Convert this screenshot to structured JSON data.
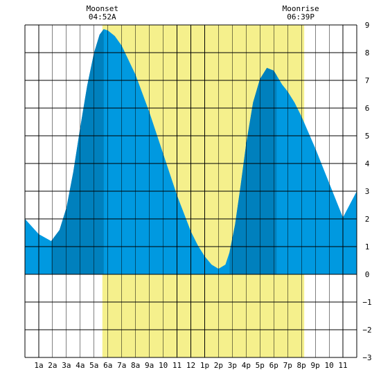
{
  "chart_data": {
    "type": "area",
    "title": "",
    "xlabel": "",
    "ylabel": "",
    "xlim": [
      0,
      24
    ],
    "ylim": [
      -3,
      9
    ],
    "y_ticks": [
      -3,
      -2,
      -1,
      0,
      1,
      2,
      3,
      4,
      5,
      6,
      7,
      8,
      9
    ],
    "x_tick_labels": [
      "1a",
      "2a",
      "3a",
      "4a",
      "5a",
      "6a",
      "7a",
      "8a",
      "9a",
      "10",
      "11",
      "12",
      "1p",
      "2p",
      "3p",
      "4p",
      "5p",
      "6p",
      "7p",
      "8p",
      "9p",
      "10",
      "11"
    ],
    "grid": true,
    "tide": {
      "x": [
        0,
        1,
        1.9,
        2.5,
        3,
        3.5,
        4,
        4.5,
        5,
        5.4,
        5.7,
        6,
        6.5,
        7,
        8,
        9,
        10,
        11,
        12,
        12.5,
        13,
        13.5,
        14,
        14.5,
        14.8,
        15.2,
        15.6,
        16,
        16.5,
        17,
        17.5,
        18,
        18.3,
        18.6,
        19,
        19.5,
        20,
        21,
        22,
        23,
        24
      ],
      "y": [
        2.0,
        1.45,
        1.2,
        1.6,
        2.4,
        3.7,
        5.3,
        6.8,
        8.0,
        8.65,
        8.85,
        8.8,
        8.6,
        8.25,
        7.2,
        5.85,
        4.35,
        2.85,
        1.55,
        1.05,
        0.65,
        0.35,
        0.2,
        0.35,
        0.8,
        1.8,
        3.2,
        4.7,
        6.2,
        7.05,
        7.45,
        7.35,
        7.1,
        6.85,
        6.6,
        6.2,
        5.7,
        4.55,
        3.3,
        2.05,
        3.0
      ]
    },
    "night_shade": [
      [
        1.9,
        5.7
      ],
      [
        14.8,
        18.2
      ]
    ],
    "moon_up_band": [
      5.6,
      20.2
    ],
    "moon_events": [
      {
        "label": "Moonset",
        "time": "04:52A",
        "x": 5.6
      },
      {
        "label": "Moonrise",
        "time": "06:39P",
        "x": 19.95
      }
    ],
    "colors": {
      "water": "#0099e0",
      "water_dark": "#0080bd",
      "moon_band": "#f5f08c",
      "grid": "#000000",
      "background": "#ffffff"
    }
  }
}
